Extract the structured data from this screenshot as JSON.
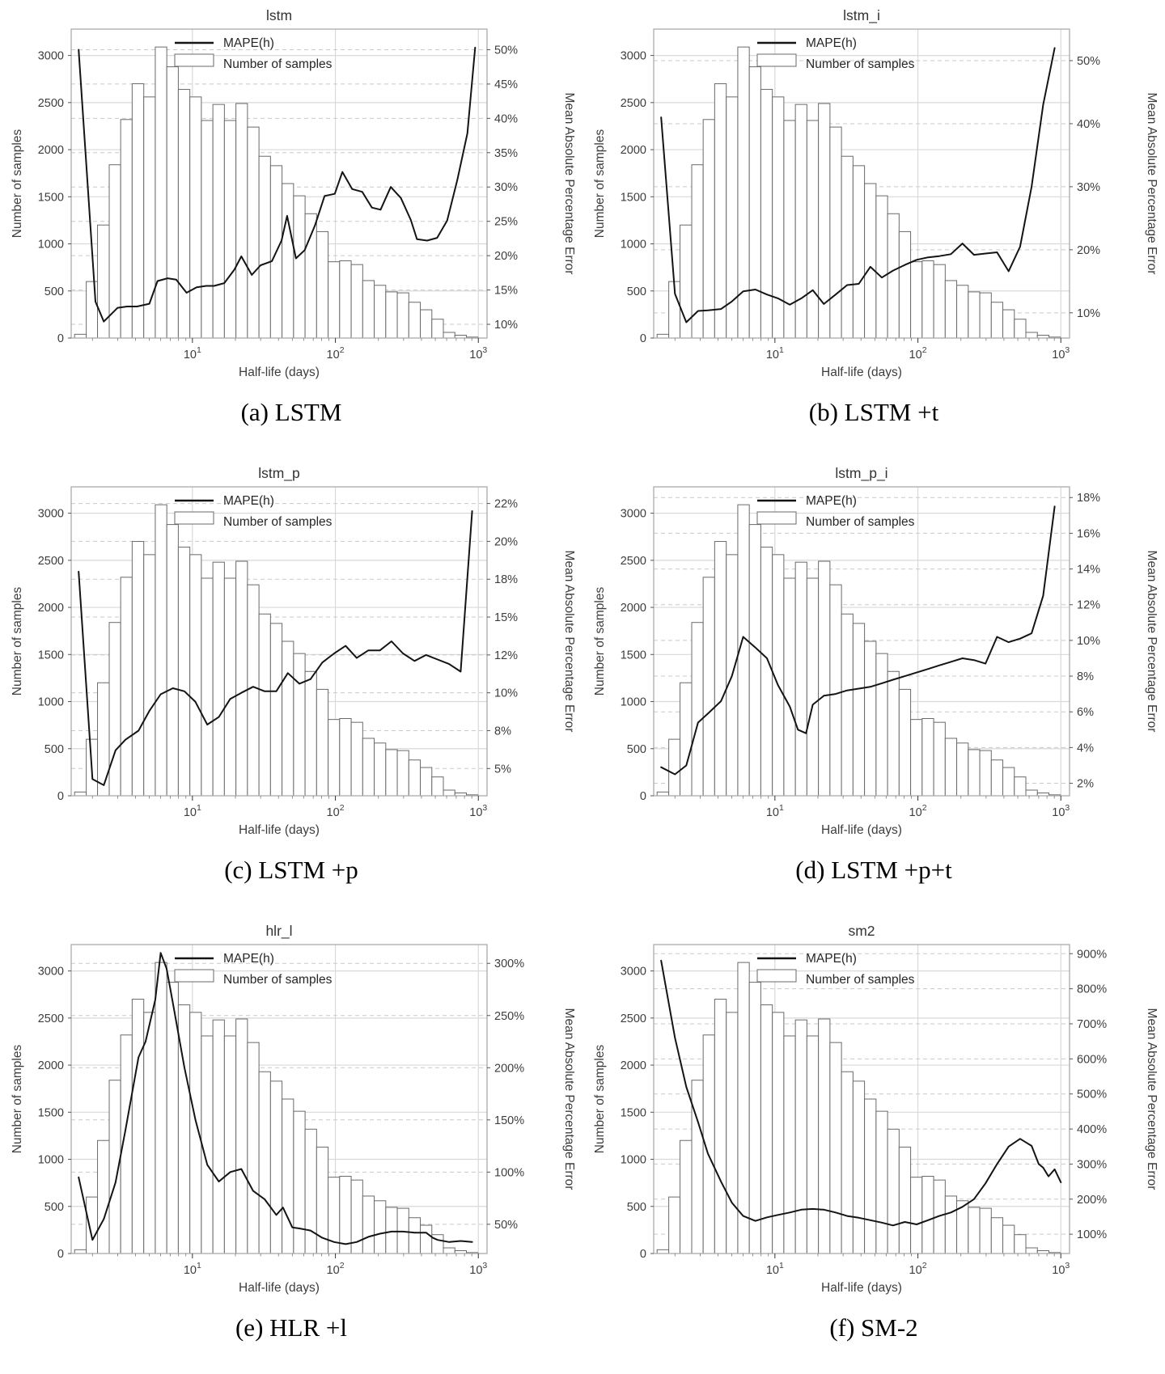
{
  "page": {
    "background": "#ffffff"
  },
  "shared": {
    "left_axis_label": "Number of samples",
    "right_axis_label": "Mean Absolute Percentage Error",
    "x_axis_label": "Half-life (days)",
    "x_ticks": [
      {
        "base": "10",
        "exp": "1",
        "value": 10
      },
      {
        "base": "10",
        "exp": "2",
        "value": 100
      },
      {
        "base": "10",
        "exp": "3",
        "value": 1000
      }
    ],
    "left_ticks": [
      0,
      500,
      1000,
      1500,
      2000,
      2500,
      3000
    ],
    "left_max": 3280,
    "legend": {
      "line_label": "MAPE(h)",
      "bar_label": "Number of samples"
    },
    "colors": {
      "line": "#141414",
      "bar_fill": "#ffffff",
      "bar_stroke": "#6a6a6a",
      "grid_solid": "#d9d9d9",
      "grid_dashed": "#c9c9c9",
      "frame": "#ababab",
      "text": "#3d3d3d",
      "title": "#333333"
    }
  },
  "chart_data": {
    "type": "dual-axis histogram + line, log-scale x",
    "x_bins_days": [
      1.5,
      1.81,
      2.17,
      2.62,
      3.15,
      3.79,
      4.57,
      5.5,
      6.62,
      7.97,
      9.6,
      11.55,
      13.91,
      16.74,
      20.16,
      24.27,
      29.22,
      35.18,
      42.35,
      50.99,
      61.39,
      73.91,
      88.98,
      107.1,
      129,
      155.3,
      186.9,
      225.1,
      271,
      326.2,
      392.7,
      472.8,
      569.2,
      685.3,
      825.1,
      993.3
    ],
    "sample_counts": [
      40,
      600,
      1200,
      1840,
      2320,
      2700,
      2560,
      3090,
      2880,
      2640,
      2560,
      2310,
      2480,
      2310,
      2490,
      2240,
      1930,
      1830,
      1640,
      1510,
      1320,
      1130,
      810,
      820,
      780,
      610,
      560,
      490,
      480,
      380,
      300,
      200,
      60,
      30,
      10
    ],
    "charts": [
      {
        "id": "lstm",
        "title": "lstm",
        "caption": "(a) LSTM",
        "right_range": [
          8,
          53
        ],
        "right_ticks": [
          {
            "v": 10,
            "label": "10%"
          },
          {
            "v": 15,
            "label": "15%"
          },
          {
            "v": 20,
            "label": "20%"
          },
          {
            "v": 25,
            "label": "25%"
          },
          {
            "v": 30,
            "label": "30%"
          },
          {
            "v": 35,
            "label": "35%"
          },
          {
            "v": 40,
            "label": "40%"
          },
          {
            "v": 45,
            "label": "45%"
          },
          {
            "v": 50,
            "label": "50%"
          }
        ],
        "mape_pct_vs_days": [
          [
            1.6,
            50
          ],
          [
            2.1,
            13.3
          ],
          [
            2.4,
            10.4
          ],
          [
            3,
            12.4
          ],
          [
            3.5,
            12.6
          ],
          [
            4.1,
            12.6
          ],
          [
            5,
            13
          ],
          [
            5.7,
            16.3
          ],
          [
            6.7,
            16.7
          ],
          [
            7.7,
            16.5
          ],
          [
            9.1,
            14.6
          ],
          [
            10.7,
            15.4
          ],
          [
            12.5,
            15.6
          ],
          [
            14.2,
            15.6
          ],
          [
            16.7,
            16
          ],
          [
            19.7,
            18
          ],
          [
            22,
            19.9
          ],
          [
            26,
            17.2
          ],
          [
            30,
            18.6
          ],
          [
            36,
            19.2
          ],
          [
            42,
            22.2
          ],
          [
            46,
            25.8
          ],
          [
            53,
            19.6
          ],
          [
            61,
            20.8
          ],
          [
            72,
            24.4
          ],
          [
            84,
            28.7
          ],
          [
            99,
            29
          ],
          [
            112,
            32.2
          ],
          [
            131,
            29.7
          ],
          [
            154,
            29.3
          ],
          [
            180,
            27
          ],
          [
            207,
            26.7
          ],
          [
            244,
            30
          ],
          [
            287,
            28.4
          ],
          [
            337,
            25.2
          ],
          [
            372,
            22.4
          ],
          [
            438,
            22.2
          ],
          [
            515,
            22.6
          ],
          [
            605,
            25.1
          ],
          [
            712,
            31
          ],
          [
            838,
            37.8
          ],
          [
            950,
            50.3
          ]
        ]
      },
      {
        "id": "lstm_i",
        "title": "lstm_i",
        "caption": "(b) LSTM +t",
        "right_range": [
          6,
          55
        ],
        "right_ticks": [
          {
            "v": 10,
            "label": "10%"
          },
          {
            "v": 20,
            "label": "20%"
          },
          {
            "v": 30,
            "label": "30%"
          },
          {
            "v": 40,
            "label": "40%"
          },
          {
            "v": 50,
            "label": "50%"
          }
        ],
        "mape_pct_vs_days": [
          [
            1.6,
            41
          ],
          [
            2,
            13
          ],
          [
            2.4,
            8.5
          ],
          [
            2.9,
            10.3
          ],
          [
            3.4,
            10.4
          ],
          [
            4.2,
            10.6
          ],
          [
            5,
            11.8
          ],
          [
            6,
            13.4
          ],
          [
            7.3,
            13.7
          ],
          [
            8.8,
            12.9
          ],
          [
            10.5,
            12.3
          ],
          [
            12.7,
            11.3
          ],
          [
            15.3,
            12.3
          ],
          [
            18.4,
            13.6
          ],
          [
            22,
            11.4
          ],
          [
            26.6,
            12.9
          ],
          [
            32,
            14.4
          ],
          [
            38.6,
            14.6
          ],
          [
            46.5,
            17.3
          ],
          [
            56,
            15.6
          ],
          [
            67,
            16.7
          ],
          [
            81,
            17.6
          ],
          [
            98,
            18.4
          ],
          [
            118,
            18.8
          ],
          [
            141,
            19
          ],
          [
            170,
            19.3
          ],
          [
            205,
            21
          ],
          [
            247,
            19.2
          ],
          [
            297,
            19.4
          ],
          [
            358,
            19.6
          ],
          [
            431,
            16.6
          ],
          [
            519,
            20.5
          ],
          [
            624,
            30
          ],
          [
            752,
            43
          ],
          [
            905,
            52
          ]
        ]
      },
      {
        "id": "lstm_p",
        "title": "lstm_p",
        "caption": "(c) LSTM +p",
        "right_range": [
          3.2,
          23.6
        ],
        "right_ticks": [
          {
            "v": 5,
            "label": "5%"
          },
          {
            "v": 7.5,
            "label": "8%"
          },
          {
            "v": 10,
            "label": "10%"
          },
          {
            "v": 12.5,
            "label": "12%"
          },
          {
            "v": 15,
            "label": "15%"
          },
          {
            "v": 17.5,
            "label": "18%"
          },
          {
            "v": 20,
            "label": "20%"
          },
          {
            "v": 22.5,
            "label": "22%"
          }
        ],
        "mape_pct_vs_days": [
          [
            1.6,
            18
          ],
          [
            2,
            4.3
          ],
          [
            2.4,
            3.9
          ],
          [
            2.9,
            6.2
          ],
          [
            3.4,
            6.9
          ],
          [
            4.2,
            7.5
          ],
          [
            5,
            8.8
          ],
          [
            6,
            9.9
          ],
          [
            7.3,
            10.3
          ],
          [
            8.8,
            10.1
          ],
          [
            10.5,
            9.4
          ],
          [
            12.7,
            7.9
          ],
          [
            15.3,
            8.4
          ],
          [
            18.4,
            9.6
          ],
          [
            22,
            10
          ],
          [
            26.6,
            10.4
          ],
          [
            32,
            10.1
          ],
          [
            38.6,
            10.1
          ],
          [
            46.5,
            11.3
          ],
          [
            56,
            10.6
          ],
          [
            67,
            10.9
          ],
          [
            81,
            12
          ],
          [
            98,
            12.6
          ],
          [
            118,
            13.1
          ],
          [
            141,
            12.3
          ],
          [
            170,
            12.8
          ],
          [
            205,
            12.8
          ],
          [
            247,
            13.4
          ],
          [
            297,
            12.6
          ],
          [
            358,
            12.1
          ],
          [
            431,
            12.5
          ],
          [
            519,
            12.2
          ],
          [
            624,
            11.9
          ],
          [
            752,
            11.4
          ],
          [
            905,
            22
          ]
        ]
      },
      {
        "id": "lstm_p_i",
        "title": "lstm_p_i",
        "caption": "(d) LSTM +p+t",
        "right_range": [
          1.3,
          18.6
        ],
        "right_ticks": [
          {
            "v": 2,
            "label": "2%"
          },
          {
            "v": 4,
            "label": "4%"
          },
          {
            "v": 6,
            "label": "6%"
          },
          {
            "v": 8,
            "label": "8%"
          },
          {
            "v": 10,
            "label": "10%"
          },
          {
            "v": 12,
            "label": "12%"
          },
          {
            "v": 14,
            "label": "14%"
          },
          {
            "v": 16,
            "label": "16%"
          },
          {
            "v": 18,
            "label": "18%"
          }
        ],
        "mape_pct_vs_days": [
          [
            1.6,
            2.9
          ],
          [
            2,
            2.5
          ],
          [
            2.4,
            3
          ],
          [
            2.9,
            5.4
          ],
          [
            3.4,
            5.9
          ],
          [
            4.2,
            6.6
          ],
          [
            5,
            8
          ],
          [
            6,
            10.2
          ],
          [
            7.3,
            9.6
          ],
          [
            8.8,
            9
          ],
          [
            10.5,
            7.5
          ],
          [
            12.7,
            6.3
          ],
          [
            14.5,
            5
          ],
          [
            16.5,
            4.8
          ],
          [
            18.4,
            6.4
          ],
          [
            22,
            6.9
          ],
          [
            26.6,
            7
          ],
          [
            32,
            7.2
          ],
          [
            38.6,
            7.3
          ],
          [
            46.5,
            7.4
          ],
          [
            56,
            7.6
          ],
          [
            67,
            7.8
          ],
          [
            81,
            8
          ],
          [
            98,
            8.2
          ],
          [
            118,
            8.4
          ],
          [
            141,
            8.6
          ],
          [
            170,
            8.8
          ],
          [
            205,
            9
          ],
          [
            247,
            8.9
          ],
          [
            297,
            8.7
          ],
          [
            358,
            10.2
          ],
          [
            431,
            9.9
          ],
          [
            519,
            10.1
          ],
          [
            624,
            10.4
          ],
          [
            752,
            12.5
          ],
          [
            905,
            17.5
          ]
        ]
      },
      {
        "id": "hlr_l",
        "title": "hlr_l",
        "caption": "(e) HLR +l",
        "right_range": [
          22,
          318
        ],
        "right_ticks": [
          {
            "v": 50,
            "label": "50%"
          },
          {
            "v": 100,
            "label": "100%"
          },
          {
            "v": 150,
            "label": "150%"
          },
          {
            "v": 200,
            "label": "200%"
          },
          {
            "v": 250,
            "label": "250%"
          },
          {
            "v": 300,
            "label": "300%"
          }
        ],
        "mape_pct_vs_days": [
          [
            1.6,
            95
          ],
          [
            2,
            35
          ],
          [
            2.4,
            55
          ],
          [
            2.9,
            90
          ],
          [
            3.4,
            140
          ],
          [
            4.2,
            210
          ],
          [
            4.7,
            225
          ],
          [
            5.5,
            265
          ],
          [
            6,
            310
          ],
          [
            6.6,
            295
          ],
          [
            7.3,
            262
          ],
          [
            8.8,
            200
          ],
          [
            10.5,
            150
          ],
          [
            12.7,
            107
          ],
          [
            15.3,
            91
          ],
          [
            18.4,
            100
          ],
          [
            22,
            103
          ],
          [
            26.6,
            82
          ],
          [
            32,
            74
          ],
          [
            38.6,
            59
          ],
          [
            43,
            66
          ],
          [
            50,
            47
          ],
          [
            56,
            46
          ],
          [
            67,
            44
          ],
          [
            81,
            37
          ],
          [
            98,
            33
          ],
          [
            118,
            31
          ],
          [
            141,
            33
          ],
          [
            170,
            38
          ],
          [
            205,
            41
          ],
          [
            247,
            43
          ],
          [
            297,
            43
          ],
          [
            358,
            42
          ],
          [
            431,
            42
          ],
          [
            480,
            37
          ],
          [
            519,
            35
          ],
          [
            624,
            33
          ],
          [
            752,
            34
          ],
          [
            905,
            33
          ]
        ]
      },
      {
        "id": "sm2",
        "title": "sm2",
        "caption": "(f) SM-2",
        "right_range": [
          45,
          926
        ],
        "right_ticks": [
          {
            "v": 100,
            "label": "100%"
          },
          {
            "v": 200,
            "label": "200%"
          },
          {
            "v": 300,
            "label": "300%"
          },
          {
            "v": 400,
            "label": "400%"
          },
          {
            "v": 500,
            "label": "500%"
          },
          {
            "v": 600,
            "label": "600%"
          },
          {
            "v": 700,
            "label": "700%"
          },
          {
            "v": 800,
            "label": "800%"
          },
          {
            "v": 900,
            "label": "900%"
          }
        ],
        "mape_pct_vs_days": [
          [
            1.6,
            880
          ],
          [
            2,
            660
          ],
          [
            2.4,
            520
          ],
          [
            2.9,
            420
          ],
          [
            3.4,
            330
          ],
          [
            4.2,
            250
          ],
          [
            5,
            190
          ],
          [
            6,
            152
          ],
          [
            7.3,
            138
          ],
          [
            8.8,
            148
          ],
          [
            10.5,
            155
          ],
          [
            12.7,
            162
          ],
          [
            15.3,
            170
          ],
          [
            18.4,
            172
          ],
          [
            22,
            170
          ],
          [
            26.6,
            162
          ],
          [
            32,
            152
          ],
          [
            38.6,
            147
          ],
          [
            46.5,
            140
          ],
          [
            56,
            133
          ],
          [
            67,
            125
          ],
          [
            81,
            135
          ],
          [
            98,
            128
          ],
          [
            118,
            140
          ],
          [
            141,
            152
          ],
          [
            170,
            162
          ],
          [
            205,
            178
          ],
          [
            247,
            200
          ],
          [
            297,
            245
          ],
          [
            358,
            300
          ],
          [
            431,
            350
          ],
          [
            519,
            372
          ],
          [
            624,
            352
          ],
          [
            700,
            300
          ],
          [
            752,
            290
          ],
          [
            820,
            265
          ],
          [
            905,
            285
          ],
          [
            1000,
            248
          ]
        ]
      }
    ]
  }
}
